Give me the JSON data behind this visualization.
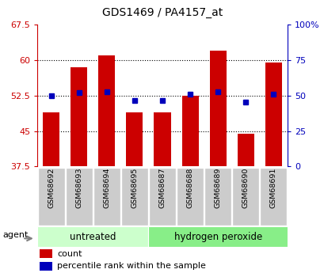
{
  "title": "GDS1469 / PA4157_at",
  "samples": [
    "GSM68692",
    "GSM68693",
    "GSM68694",
    "GSM68695",
    "GSM68687",
    "GSM68688",
    "GSM68689",
    "GSM68690",
    "GSM68691"
  ],
  "counts": [
    49.0,
    58.5,
    61.0,
    49.0,
    49.0,
    52.5,
    62.0,
    44.5,
    59.5
  ],
  "percentiles": [
    50.0,
    52.0,
    52.5,
    46.5,
    46.5,
    51.0,
    52.5,
    45.5,
    51.0
  ],
  "ylim_left": [
    37.5,
    67.5
  ],
  "ylim_right": [
    0,
    100
  ],
  "yticks_left": [
    37.5,
    45.0,
    52.5,
    60.0,
    67.5
  ],
  "yticks_right": [
    0,
    25,
    50,
    75,
    100
  ],
  "ytick_labels_left": [
    "37.5",
    "45",
    "52.5",
    "60",
    "67.5"
  ],
  "ytick_labels_right": [
    "0",
    "25",
    "50",
    "75",
    "100%"
  ],
  "bar_color": "#cc0000",
  "marker_color": "#0000bb",
  "group_labels": [
    "untreated",
    "hydrogen peroxide"
  ],
  "group_ranges": [
    [
      0,
      4
    ],
    [
      4,
      9
    ]
  ],
  "group_colors_light": [
    "#ccffcc",
    "#88ee88"
  ],
  "group_colors_dark": [
    "#aaeaaa",
    "#44dd44"
  ],
  "agent_label": "agent",
  "legend_count": "count",
  "legend_percentile": "percentile rank within the sample",
  "background_color": "#ffffff",
  "sample_box_color": "#cccccc",
  "sample_box_edge": "#ffffff",
  "dotted_grid_color": "#333333"
}
